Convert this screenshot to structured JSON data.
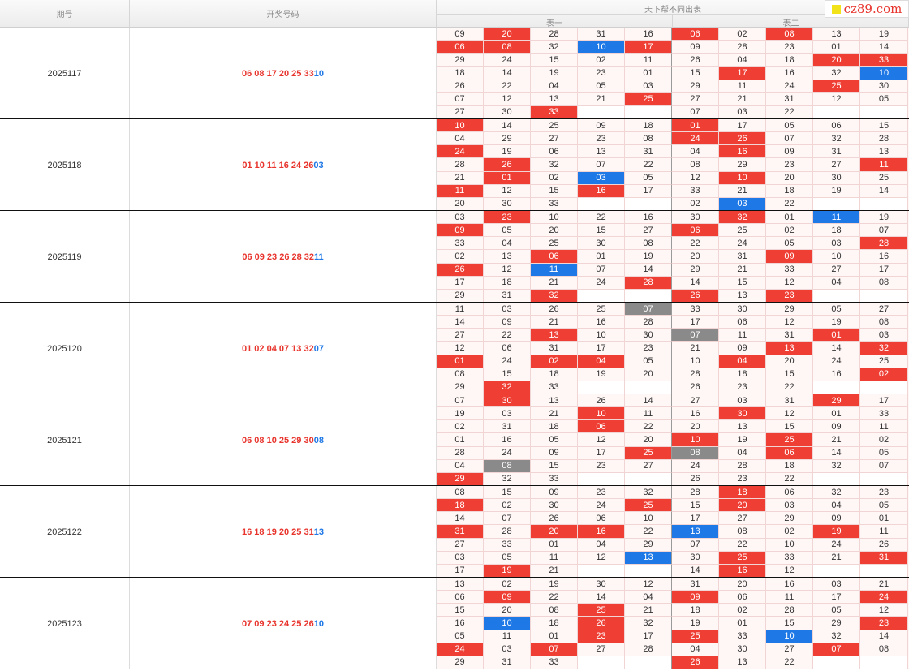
{
  "header": {
    "issue_label": "期号",
    "draw_label": "开奖号码",
    "group_label": "天下帮不同出表",
    "table1_label": "表一",
    "table2_label": "表二"
  },
  "logo": {
    "text": "cz89.com"
  },
  "colors": {
    "red": "#ef3f35",
    "blue": "#1e78e6",
    "gray": "#8a8a8a"
  },
  "rows": [
    {
      "issue": "2025117",
      "red": "06 08 17 20 25 33",
      "blue": "10",
      "grid": [
        [
          "09",
          "20r",
          "28",
          "31",
          "16",
          "06r",
          "02",
          "08r",
          "13",
          "19"
        ],
        [
          "06r",
          "08r",
          "32",
          "10b",
          "17r",
          "09",
          "28",
          "23",
          "01",
          "14"
        ],
        [
          "29",
          "24",
          "15",
          "02",
          "11",
          "26",
          "04",
          "18",
          "20r",
          "33r"
        ],
        [
          "18",
          "14",
          "19",
          "23",
          "01",
          "15",
          "17r",
          "16",
          "32",
          "10b"
        ],
        [
          "26",
          "22",
          "04",
          "05",
          "03",
          "29",
          "11",
          "24",
          "25r",
          "30"
        ],
        [
          "07",
          "12",
          "13",
          "21",
          "25r",
          "27",
          "21",
          "31",
          "12",
          "05"
        ],
        [
          "27",
          "30",
          "33r",
          "",
          "",
          "07",
          "03",
          "22",
          "",
          ""
        ]
      ]
    },
    {
      "issue": "2025118",
      "red": "01 10 11 16 24 26",
      "blue": "03",
      "grid": [
        [
          "10r",
          "14",
          "25",
          "09",
          "18",
          "01r",
          "17",
          "05",
          "06",
          "15"
        ],
        [
          "04",
          "29",
          "27",
          "23",
          "08",
          "24r",
          "26r",
          "07",
          "32",
          "28"
        ],
        [
          "24r",
          "19",
          "06",
          "13",
          "31",
          "04",
          "16r",
          "09",
          "31",
          "13"
        ],
        [
          "28",
          "26r",
          "32",
          "07",
          "22",
          "08",
          "29",
          "23",
          "27",
          "11r"
        ],
        [
          "21",
          "01r",
          "02",
          "03b",
          "05",
          "12",
          "10r",
          "20",
          "30",
          "25"
        ],
        [
          "11r",
          "12",
          "15",
          "16r",
          "17",
          "33",
          "21",
          "18",
          "19",
          "14"
        ],
        [
          "20",
          "30",
          "33",
          "",
          "",
          "02",
          "03b",
          "22",
          "",
          ""
        ]
      ]
    },
    {
      "issue": "2025119",
      "red": "06 09 23 26 28 32",
      "blue": "11",
      "grid": [
        [
          "03",
          "23r",
          "10",
          "22",
          "16",
          "30",
          "32r",
          "01",
          "11b",
          "19"
        ],
        [
          "09r",
          "05",
          "20",
          "15",
          "27",
          "06r",
          "25",
          "02",
          "18",
          "07"
        ],
        [
          "33",
          "04",
          "25",
          "30",
          "08",
          "22",
          "24",
          "05",
          "03",
          "28r"
        ],
        [
          "02",
          "13",
          "06r",
          "01",
          "19",
          "20",
          "31",
          "09r",
          "10",
          "16"
        ],
        [
          "26r",
          "12",
          "11b",
          "07",
          "14",
          "29",
          "21",
          "33",
          "27",
          "17"
        ],
        [
          "17",
          "18",
          "21",
          "24",
          "28r",
          "14",
          "15",
          "12",
          "04",
          "08"
        ],
        [
          "29",
          "31",
          "32r",
          "",
          "",
          "26r",
          "13",
          "23r",
          "",
          ""
        ]
      ]
    },
    {
      "issue": "2025120",
      "red": "01 02 04 07 13 32",
      "blue": "07",
      "grid": [
        [
          "11",
          "03",
          "26",
          "25",
          "07g",
          "33",
          "30",
          "29",
          "05",
          "27"
        ],
        [
          "14",
          "09",
          "21",
          "16",
          "28",
          "17",
          "06",
          "12",
          "19",
          "08"
        ],
        [
          "27",
          "22",
          "13r",
          "10",
          "30",
          "07g",
          "11",
          "31",
          "01r",
          "03"
        ],
        [
          "12",
          "06",
          "31",
          "17",
          "23",
          "21",
          "09",
          "13r",
          "14",
          "32r"
        ],
        [
          "01r",
          "24",
          "02r",
          "04r",
          "05",
          "10",
          "04r",
          "20",
          "24",
          "25"
        ],
        [
          "08",
          "15",
          "18",
          "19",
          "20",
          "28",
          "18",
          "15",
          "16",
          "02r"
        ],
        [
          "29",
          "32r",
          "33",
          "",
          "",
          "26",
          "23",
          "22",
          "",
          ""
        ]
      ]
    },
    {
      "issue": "2025121",
      "red": "06 08 10 25 29 30",
      "blue": "08",
      "grid": [
        [
          "07",
          "30r",
          "13",
          "26",
          "14",
          "27",
          "03",
          "31",
          "29r",
          "17"
        ],
        [
          "19",
          "03",
          "21",
          "10r",
          "11",
          "16",
          "30r",
          "12",
          "01",
          "33"
        ],
        [
          "02",
          "31",
          "18",
          "06r",
          "22",
          "20",
          "13",
          "15",
          "09",
          "11"
        ],
        [
          "01",
          "16",
          "05",
          "12",
          "20",
          "10r",
          "19",
          "25r",
          "21",
          "02"
        ],
        [
          "28",
          "24",
          "09",
          "17",
          "25r",
          "08g",
          "04",
          "06r",
          "14",
          "05"
        ],
        [
          "04",
          "08g",
          "15",
          "23",
          "27",
          "24",
          "28",
          "18",
          "32",
          "07"
        ],
        [
          "29r",
          "32",
          "33",
          "",
          "",
          "26",
          "23",
          "22",
          "",
          ""
        ]
      ]
    },
    {
      "issue": "2025122",
      "red": "16 18 19 20 25 31",
      "blue": "13",
      "grid": [
        [
          "08",
          "15",
          "09",
          "23",
          "32",
          "28",
          "18r",
          "06",
          "32",
          "23"
        ],
        [
          "18r",
          "02",
          "30",
          "24",
          "25r",
          "15",
          "20r",
          "03",
          "04",
          "05"
        ],
        [
          "14",
          "07",
          "26",
          "06",
          "10",
          "17",
          "27",
          "29",
          "09",
          "01"
        ],
        [
          "31r",
          "28",
          "20r",
          "16r",
          "22",
          "13b",
          "08",
          "02",
          "19r",
          "11"
        ],
        [
          "27",
          "33",
          "01",
          "04",
          "29",
          "07",
          "22",
          "10",
          "24",
          "26"
        ],
        [
          "03",
          "05",
          "11",
          "12",
          "13b",
          "30",
          "25r",
          "33",
          "21",
          "31r"
        ],
        [
          "17",
          "19r",
          "21",
          "",
          "",
          "14",
          "16r",
          "12",
          "",
          ""
        ]
      ]
    },
    {
      "issue": "2025123",
      "red": "07 09 23 24 25 26",
      "blue": "10",
      "grid": [
        [
          "13",
          "02",
          "19",
          "30",
          "12",
          "31",
          "20",
          "16",
          "03",
          "21"
        ],
        [
          "06",
          "09r",
          "22",
          "14",
          "04",
          "09r",
          "06",
          "11",
          "17",
          "24r"
        ],
        [
          "15",
          "20",
          "08",
          "25r",
          "21",
          "18",
          "02",
          "28",
          "05",
          "12"
        ],
        [
          "16",
          "10b",
          "18",
          "26r",
          "32",
          "19",
          "01",
          "15",
          "29",
          "23r"
        ],
        [
          "05",
          "11",
          "01",
          "23r",
          "17",
          "25r",
          "33",
          "10b",
          "32",
          "14"
        ],
        [
          "24r",
          "03",
          "07r",
          "27",
          "28",
          "04",
          "30",
          "27",
          "07r",
          "08"
        ],
        [
          "29",
          "31",
          "33",
          "",
          "",
          "26r",
          "13",
          "22",
          "",
          ""
        ]
      ]
    }
  ]
}
